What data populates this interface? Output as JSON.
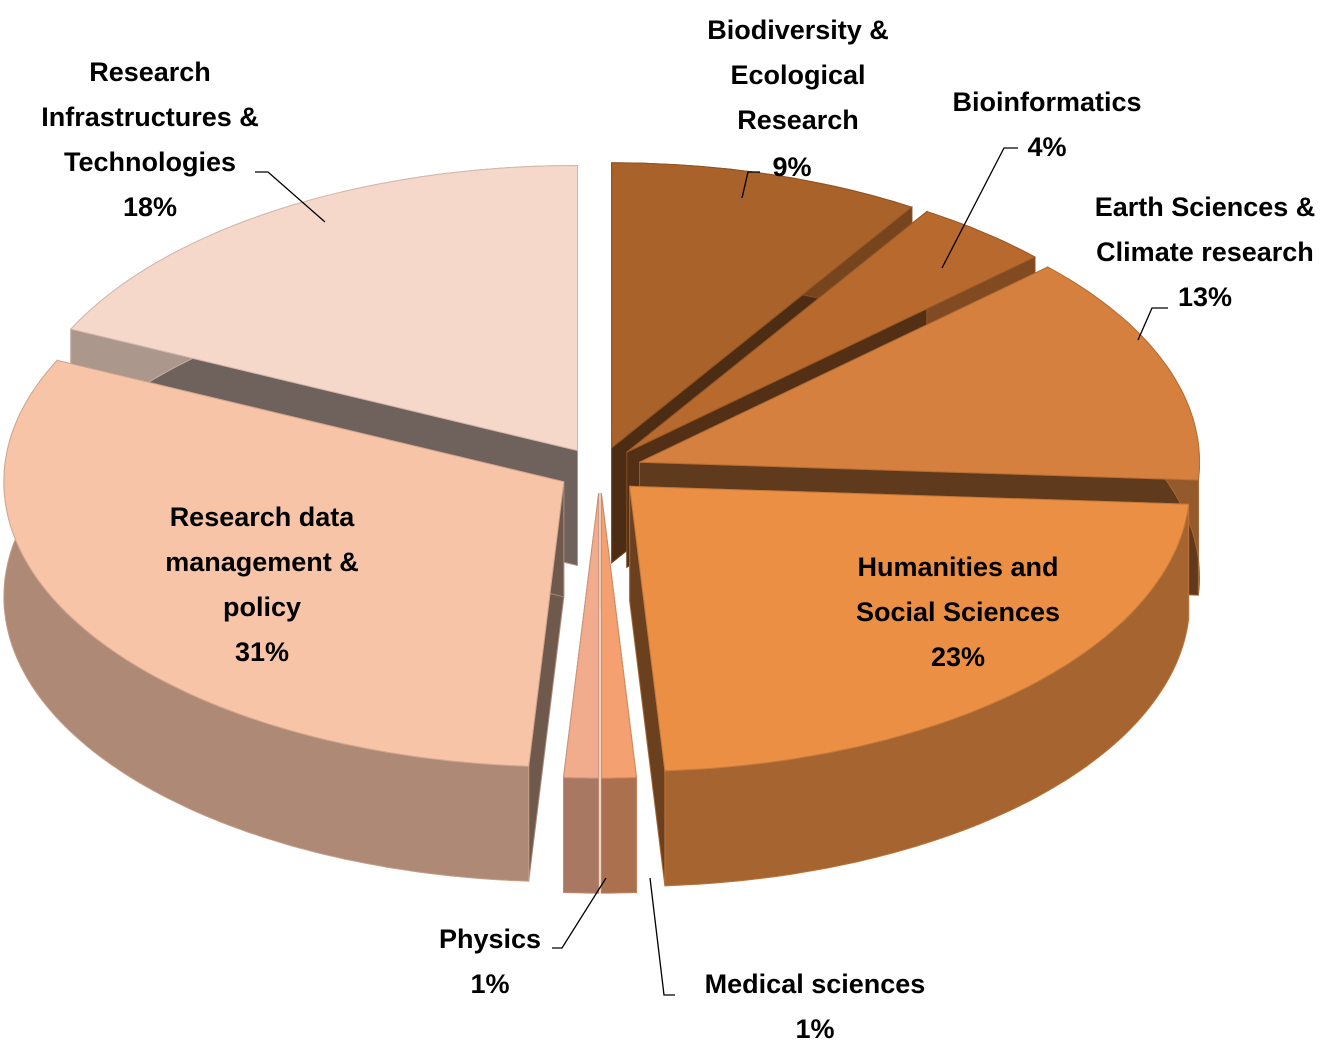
{
  "chart_data": {
    "type": "pie",
    "categories": [
      "Biodiversity &\nEcological\nResearch",
      "Bioinformatics",
      "Earth Sciences &\nClimate research",
      "Humanities and\nSocial Sciences",
      "Medical sciences",
      "Physics",
      "Research data\nmanagement &\npolicy",
      "Research\nInfrastructures &\nTechnologies"
    ],
    "values": [
      9,
      4,
      13,
      23,
      1,
      1,
      31,
      18
    ],
    "value_labels": [
      "9%",
      "4%",
      "13%",
      "23%",
      "1%",
      "1%",
      "31%",
      "18%"
    ],
    "colors": [
      "#a8622a",
      "#b8692e",
      "#d5803e",
      "#eb8f45",
      "#f4a070",
      "#f0ac8c",
      "#f7c4a8",
      "#f6d8ca"
    ]
  }
}
